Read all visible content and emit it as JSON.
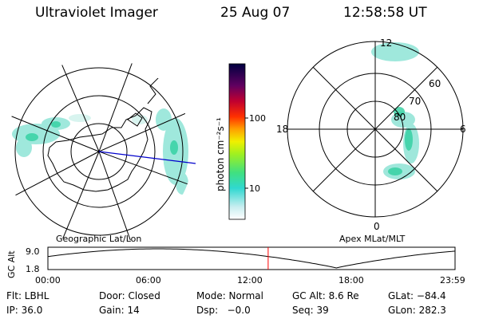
{
  "header": {
    "instrument": "Ultraviolet Imager",
    "date": "25 Aug 07",
    "time": "12:58:58 UT"
  },
  "left_map": {
    "caption": "Geographic Lat/Lon"
  },
  "right_map": {
    "caption": "Apex MLat/MLT",
    "mlt_labels": [
      "12",
      "18",
      "6",
      "0"
    ],
    "lat_labels": [
      "60",
      "70",
      "80"
    ]
  },
  "colorbar": {
    "unit_label": "photon cm⁻²s⁻¹",
    "tick_labels": [
      "100",
      "10"
    ]
  },
  "altitude_plot": {
    "ylabel": "GC Alt",
    "y_tick_labels": [
      "9.0",
      "1.8"
    ],
    "x_tick_labels": [
      "00:00",
      "06:00",
      "12:00",
      "18:00",
      "23:59"
    ],
    "current_time_hours": 12.983,
    "colors": {
      "marker": "#ff0000",
      "curve": "#000000"
    }
  },
  "status": {
    "row1": [
      "Flt: LBHL",
      "Door: Closed",
      "Mode: Normal",
      "GC Alt: 8.6 Re",
      "GLat: −84.4"
    ],
    "row2": [
      "IP: 36.0",
      "Gain: 14",
      "Dsp:   −0.0",
      "Seq: 39",
      "GLon: 282.3"
    ]
  }
}
